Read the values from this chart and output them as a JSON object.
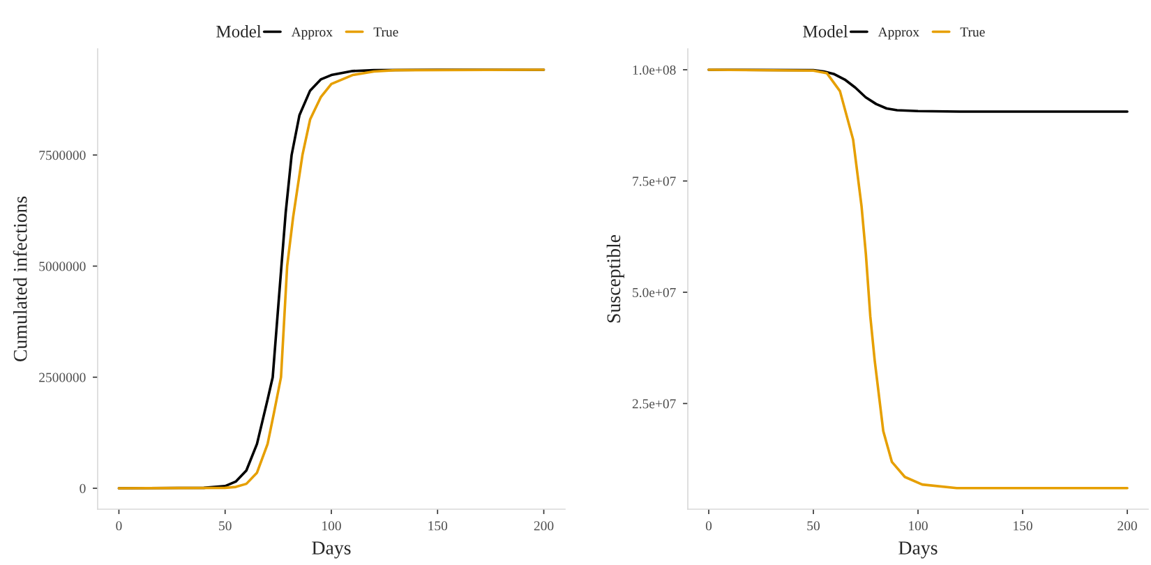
{
  "chart_data": [
    {
      "type": "line",
      "xlabel": "Days",
      "ylabel": "Cumulated infections",
      "legend_title": "Model",
      "legend": "top",
      "grid": false,
      "xlim": [
        -10,
        210
      ],
      "xticks": [
        0,
        50,
        100,
        150,
        200
      ],
      "ylim": [
        -471000,
        9890000
      ],
      "yticks": [
        0,
        2500000,
        5000000,
        7500000
      ],
      "series": [
        {
          "name": "Approx",
          "color": "#000000",
          "x": [
            0,
            40,
            50,
            55,
            60,
            65,
            70,
            72.4,
            76.5,
            78.5,
            81.3,
            85,
            90,
            95,
            100,
            110,
            120,
            150,
            200
          ],
          "values": [
            0,
            10000,
            50000,
            150000,
            400000,
            1000000,
            2000000,
            2500000,
            5000000,
            6200000,
            7500000,
            8400000,
            8950000,
            9200000,
            9300000,
            9390000,
            9410000,
            9420000,
            9420000
          ]
        },
        {
          "name": "True",
          "color": "#E69F00",
          "x": [
            0,
            50,
            55,
            60,
            65,
            70,
            73,
            76.3,
            79.2,
            82,
            86.4,
            90,
            95,
            100,
            110,
            120,
            130,
            200
          ],
          "values": [
            0,
            10000,
            30000,
            100000,
            350000,
            1000000,
            1700000,
            2500000,
            5000000,
            6100000,
            7500000,
            8300000,
            8800000,
            9100000,
            9300000,
            9380000,
            9410000,
            9420000
          ]
        }
      ]
    },
    {
      "type": "line",
      "xlabel": "Days",
      "ylabel": "Susceptible",
      "legend_title": "Model",
      "legend": "top",
      "grid": false,
      "xlim": [
        -10,
        210
      ],
      "xticks": [
        0,
        50,
        100,
        150,
        200
      ],
      "ylim": [
        1250000,
        104700000
      ],
      "yticks": [
        {
          "value": 25000000,
          "label": "2.5e+07"
        },
        {
          "value": 50000000,
          "label": "5.0e+07"
        },
        {
          "value": 75000000,
          "label": "7.5e+07"
        },
        {
          "value": 100000000,
          "label": "1.0e+08"
        }
      ],
      "series": [
        {
          "name": "Approx",
          "color": "#000000",
          "x": [
            0,
            50,
            55,
            60,
            65,
            70,
            75,
            80,
            85,
            90,
            100,
            120,
            200
          ],
          "values": [
            100000000,
            99900000,
            99600000,
            99000000,
            97800000,
            96000000,
            93800000,
            92300000,
            91300000,
            90900000,
            90700000,
            90600000,
            90600000
          ]
        },
        {
          "name": "True",
          "color": "#E69F00",
          "x": [
            0,
            50,
            56.5,
            62.7,
            69,
            73,
            75.1,
            77.2,
            79.3,
            83.4,
            87.5,
            93.7,
            102,
            118.5,
            200
          ],
          "values": [
            100000000,
            99800000,
            99200000,
            95200000,
            84300000,
            69400000,
            58500000,
            44600000,
            34700000,
            18800000,
            11900000,
            8500000,
            6800000,
            6000000,
            6000000
          ]
        }
      ]
    }
  ]
}
